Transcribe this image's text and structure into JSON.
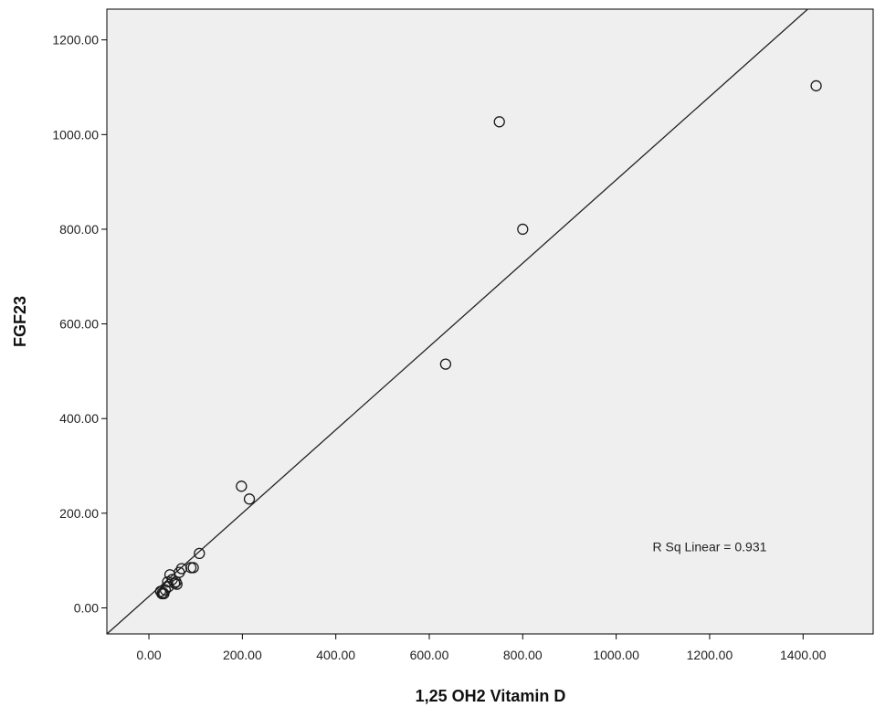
{
  "chart_data": {
    "type": "scatter",
    "title": "",
    "xlabel": "1,25 OH2 Vitamin D",
    "ylabel": "FGF23",
    "xlim": [
      -90,
      1550
    ],
    "ylim": [
      -55,
      1265
    ],
    "x_ticks": [
      0,
      200,
      400,
      600,
      800,
      1000,
      1200,
      1400
    ],
    "x_tick_labels": [
      "0.00",
      "200.00",
      "400.00",
      "600.00",
      "800.00",
      "1000.00",
      "1200.00",
      "1400.00"
    ],
    "y_ticks": [
      0,
      200,
      400,
      600,
      800,
      1000,
      1200
    ],
    "y_tick_labels": [
      "0.00",
      "200.00",
      "400.00",
      "600.00",
      "800.00",
      "1000.00",
      "1200.00"
    ],
    "grid": false,
    "background_color": "#efefef",
    "marker": "open-circle",
    "points": [
      {
        "x": 25,
        "y": 35
      },
      {
        "x": 28,
        "y": 30
      },
      {
        "x": 30,
        "y": 32
      },
      {
        "x": 32,
        "y": 30
      },
      {
        "x": 35,
        "y": 38
      },
      {
        "x": 40,
        "y": 55
      },
      {
        "x": 42,
        "y": 45
      },
      {
        "x": 45,
        "y": 70
      },
      {
        "x": 50,
        "y": 60
      },
      {
        "x": 55,
        "y": 52
      },
      {
        "x": 58,
        "y": 55
      },
      {
        "x": 60,
        "y": 50
      },
      {
        "x": 65,
        "y": 75
      },
      {
        "x": 70,
        "y": 83
      },
      {
        "x": 90,
        "y": 85
      },
      {
        "x": 95,
        "y": 85
      },
      {
        "x": 108,
        "y": 115
      },
      {
        "x": 198,
        "y": 257
      },
      {
        "x": 215,
        "y": 230
      },
      {
        "x": 635,
        "y": 515
      },
      {
        "x": 750,
        "y": 1027
      },
      {
        "x": 800,
        "y": 800
      },
      {
        "x": 1428,
        "y": 1103
      }
    ],
    "fit_line": {
      "type": "linear",
      "x": [
        -90,
        1410
      ],
      "y": [
        -55,
        1265
      ]
    },
    "annotation": "R Sq Linear = 0.931",
    "annotation_data_pos": {
      "x": 1200,
      "y": 120
    }
  }
}
